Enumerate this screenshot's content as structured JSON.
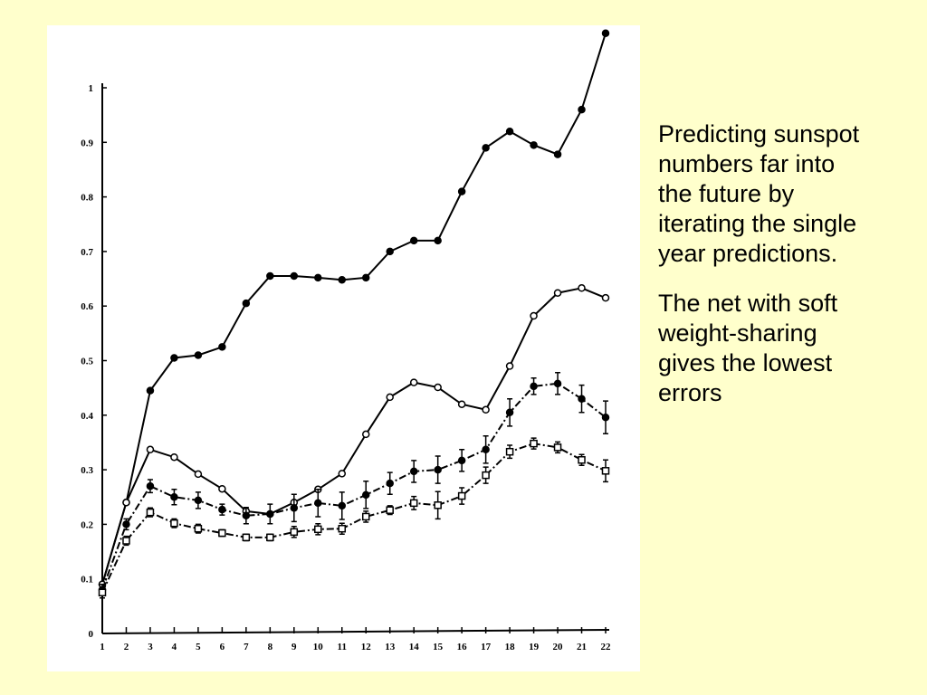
{
  "chart_data": {
    "type": "line",
    "x": [
      1,
      2,
      3,
      4,
      5,
      6,
      7,
      8,
      9,
      10,
      11,
      12,
      13,
      14,
      15,
      16,
      17,
      18,
      19,
      20,
      21,
      22
    ],
    "xlim": [
      1,
      22
    ],
    "xticks": [
      1,
      2,
      3,
      4,
      5,
      6,
      7,
      8,
      9,
      10,
      11,
      12,
      13,
      14,
      15,
      16,
      17,
      18,
      19,
      20,
      21,
      22
    ],
    "ylim": [
      0,
      1
    ],
    "yticks": [
      0,
      0.1,
      0.2,
      0.3,
      0.4,
      0.5,
      0.6,
      0.7,
      0.8,
      0.9,
      1
    ],
    "series": [
      {
        "color": "#000000",
        "marker": "filled",
        "dash": false,
        "values": [
          0.09,
          0.24,
          0.445,
          0.505,
          0.51,
          0.525,
          0.605,
          0.655,
          0.655,
          0.652,
          0.648,
          0.652,
          0.7,
          0.72,
          0.72,
          0.81,
          0.89,
          0.92,
          0.895,
          0.878,
          0.96,
          1.1
        ]
      },
      {
        "color": "#000000",
        "marker": "open",
        "dash": false,
        "values": [
          0.09,
          0.24,
          0.337,
          0.323,
          0.292,
          0.265,
          0.224,
          0.219,
          0.24,
          0.264,
          0.293,
          0.365,
          0.433,
          0.46,
          0.451,
          0.42,
          0.41,
          0.49,
          0.582,
          0.624,
          0.633,
          0.615
        ]
      },
      {
        "color": "#000000",
        "marker": "filled",
        "dash": true,
        "values": [
          0.08,
          0.2,
          0.27,
          0.25,
          0.244,
          0.227,
          0.216,
          0.219,
          0.23,
          0.239,
          0.234,
          0.254,
          0.275,
          0.297,
          0.3,
          0.317,
          0.337,
          0.405,
          0.453,
          0.458,
          0.43,
          0.396
        ],
        "errors": [
          0.01,
          0.01,
          0.012,
          0.014,
          0.015,
          0.01,
          0.015,
          0.018,
          0.025,
          0.025,
          0.025,
          0.025,
          0.02,
          0.02,
          0.025,
          0.02,
          0.025,
          0.025,
          0.015,
          0.02,
          0.025,
          0.03
        ]
      },
      {
        "color": "#000000",
        "marker": "square",
        "dash": true,
        "values": [
          0.075,
          0.17,
          0.222,
          0.202,
          0.192,
          0.184,
          0.176,
          0.176,
          0.186,
          0.191,
          0.192,
          0.214,
          0.226,
          0.239,
          0.235,
          0.252,
          0.29,
          0.333,
          0.348,
          0.341,
          0.318,
          0.298
        ],
        "errors": [
          0.01,
          0.008,
          0.008,
          0.008,
          0.008,
          0.006,
          0.006,
          0.006,
          0.01,
          0.01,
          0.01,
          0.01,
          0.008,
          0.012,
          0.025,
          0.015,
          0.015,
          0.012,
          0.01,
          0.01,
          0.01,
          0.02
        ]
      }
    ]
  },
  "text": [
    "Predicting sunspot numbers far into the future by iterating the single year predictions.",
    "The net with soft weight-sharing gives the lowest errors"
  ]
}
